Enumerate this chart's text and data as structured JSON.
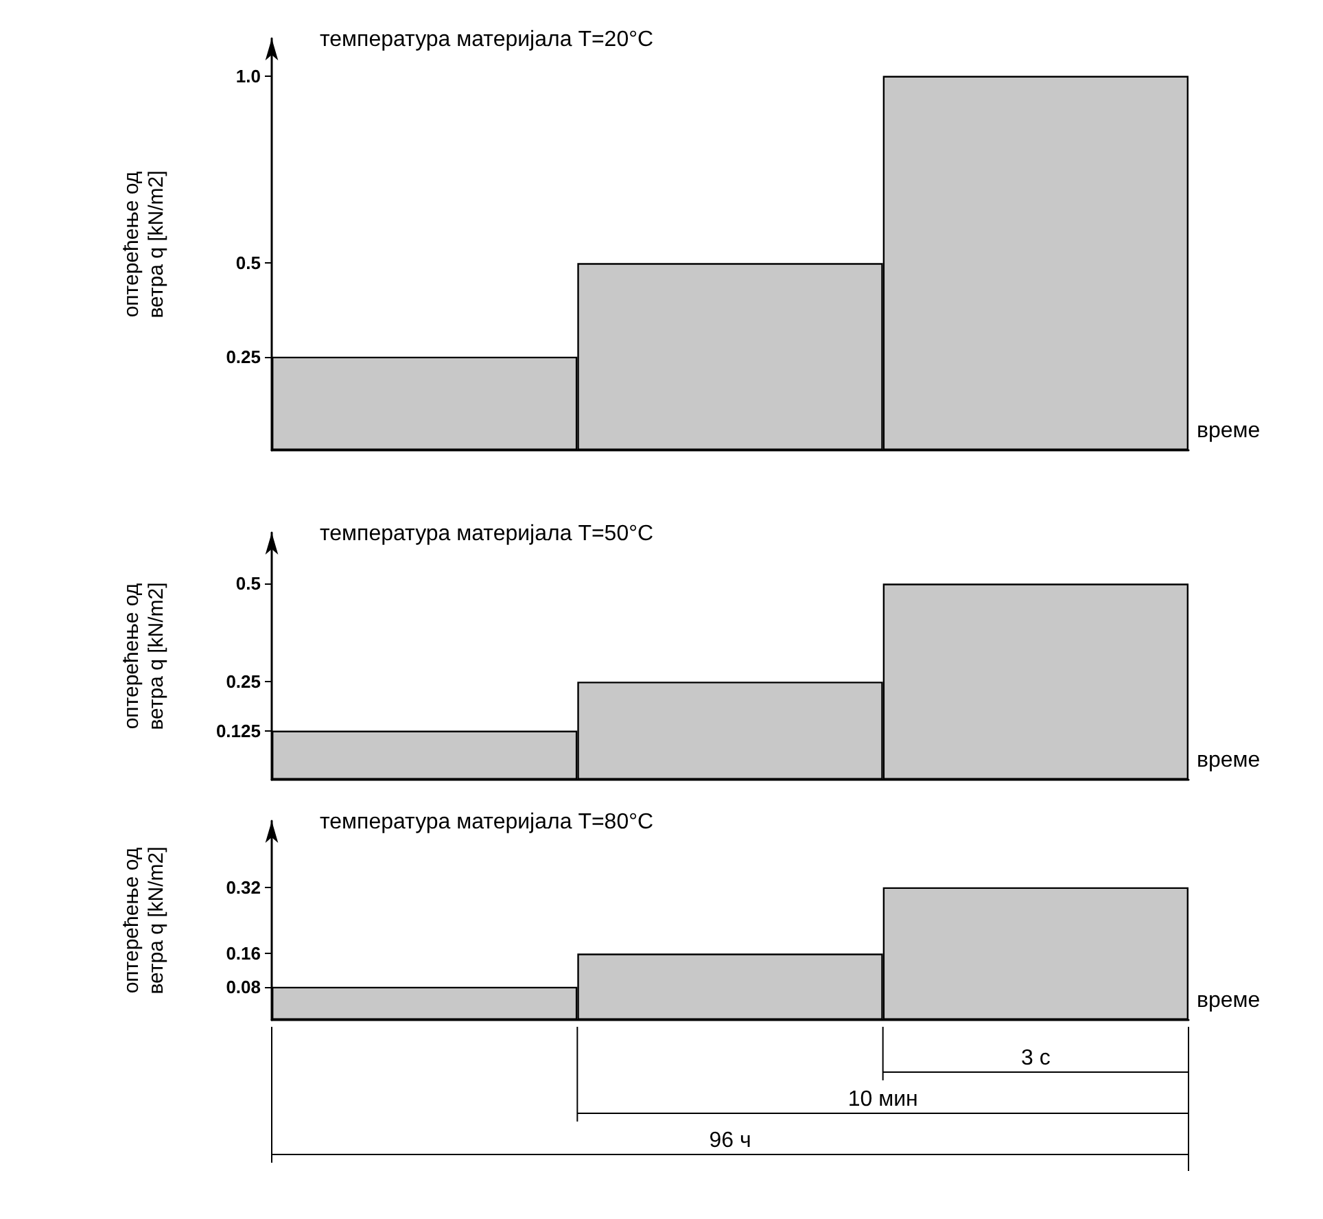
{
  "chart_data": [
    {
      "type": "bar",
      "title": "температура материјала T=20°C",
      "ylabel": "оптерећење од ветра q [kN/m2]",
      "xlabel": "време",
      "categories": [
        null,
        null,
        null
      ],
      "values": [
        0.25,
        0.5,
        1.0
      ],
      "color": "#c8c8c8",
      "ylim": [
        0,
        1.1
      ],
      "yticks": [
        0.25,
        0.5,
        {
          "value": 1,
          "label": "1.0"
        }
      ],
      "tick_labels": "y",
      "grid": false
    },
    {
      "type": "bar",
      "title": "температура материјала T=50°C",
      "ylabel": "оптерећење од ветра q [kN/m2]",
      "xlabel": "време",
      "categories": [
        null,
        null,
        null
      ],
      "values": [
        0.125,
        0.25,
        0.5
      ],
      "color": "#c8c8c8",
      "ylim": [
        0,
        0.63
      ],
      "yticks": [
        0.125,
        0.25,
        0.5
      ],
      "tick_labels": "y",
      "grid": false
    },
    {
      "type": "bar",
      "title": "температура материјала T=80°C",
      "ylabel": "оптерећење од ветра q [kN/m2]",
      "xlabel": "време",
      "categories": [
        null,
        null,
        null
      ],
      "values": [
        0.08,
        0.16,
        0.32
      ],
      "color": "#c8c8c8",
      "ylim": [
        0,
        0.48
      ],
      "yticks": [
        0.08,
        0.16,
        0.32
      ],
      "tick_labels": "y",
      "grid": false,
      "annotations": [
        "3 с",
        "10 мин",
        "96 ч"
      ]
    }
  ]
}
